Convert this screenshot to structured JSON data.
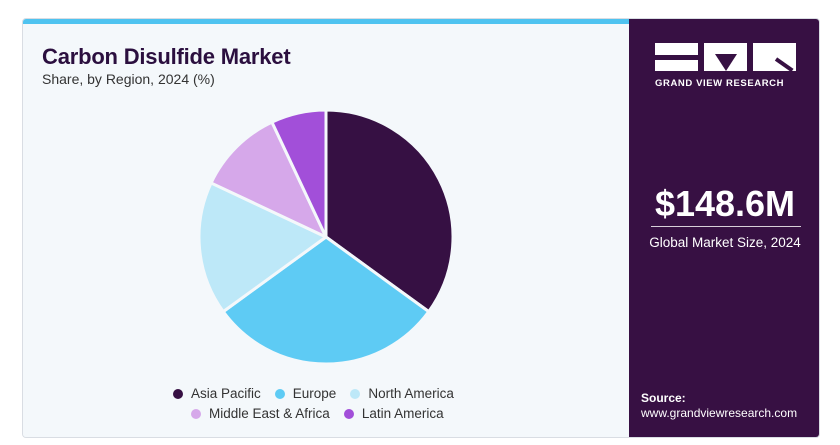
{
  "title": "Carbon Disulfide Market",
  "subtitle": "Share, by Region, 2024 (%)",
  "colors": {
    "accent_bar": "#4fc3f0",
    "right_panel": "#371043"
  },
  "chart_data": {
    "type": "pie",
    "title": "Carbon Disulfide Market",
    "subtitle": "Share, by Region, 2024 (%)",
    "categories": [
      "Asia Pacific",
      "Europe",
      "North America",
      "Middle East & Africa",
      "Latin America"
    ],
    "values": [
      35,
      30,
      17,
      11,
      7
    ],
    "colors": [
      "#361043",
      "#5ecbf4",
      "#bde8f8",
      "#d6a8ea",
      "#a24fd9"
    ],
    "start_angle_deg": 0,
    "direction": "clockwise",
    "legend_position": "bottom"
  },
  "sidebar": {
    "brand": "GRAND VIEW RESEARCH",
    "market_size": "$148.6M",
    "market_size_label": "Global Market Size, 2024",
    "source_label": "Source:",
    "source_url": "www.grandviewresearch.com"
  }
}
